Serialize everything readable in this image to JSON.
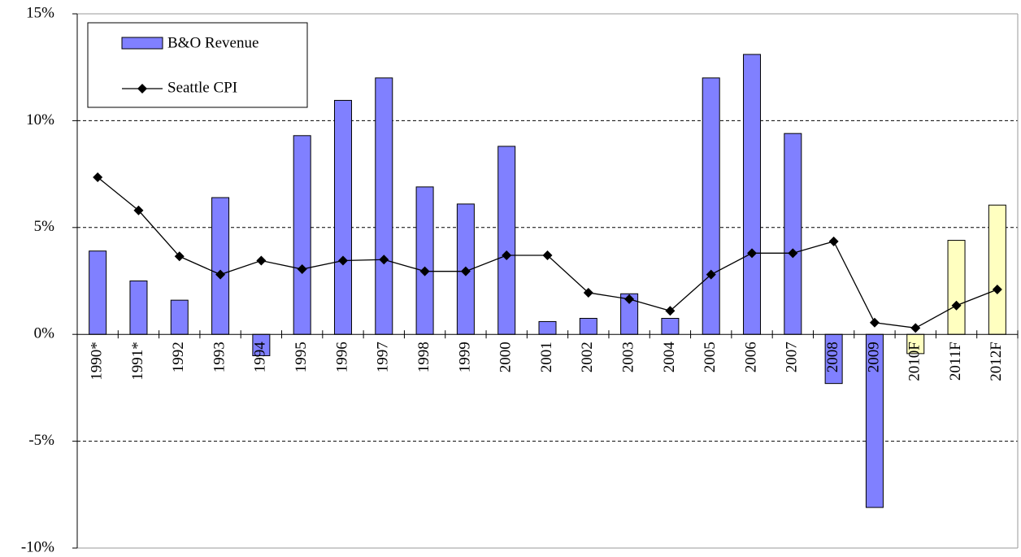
{
  "chart_data": {
    "type": "bar-line",
    "categories": [
      "1990*",
      "1991*",
      "1992",
      "1993",
      "1994",
      "1995",
      "1996",
      "1997",
      "1998",
      "1999",
      "2000",
      "2001",
      "2002",
      "2003",
      "2004",
      "2005",
      "2006",
      "2007",
      "2008",
      "2009",
      "2010F",
      "2011F",
      "2012F"
    ],
    "series": [
      {
        "name": "B&O Revenue",
        "type": "bar",
        "color": "#8080ff",
        "colors": [
          "#8080ff",
          "#8080ff",
          "#8080ff",
          "#8080ff",
          "#8080ff",
          "#8080ff",
          "#8080ff",
          "#8080ff",
          "#8080ff",
          "#8080ff",
          "#8080ff",
          "#8080ff",
          "#8080ff",
          "#8080ff",
          "#8080ff",
          "#8080ff",
          "#8080ff",
          "#8080ff",
          "#8080ff",
          "#8080ff",
          "#ffffc0",
          "#ffffc0",
          "#ffffc0"
        ],
        "values": [
          3.9,
          2.5,
          1.6,
          6.4,
          -1.0,
          9.3,
          10.95,
          12.0,
          6.9,
          6.1,
          8.8,
          0.6,
          0.75,
          1.9,
          0.75,
          12.0,
          13.1,
          9.4,
          -2.3,
          -8.1,
          -0.9,
          4.4,
          6.05
        ]
      },
      {
        "name": "Seattle CPI",
        "type": "line",
        "color": "#000000",
        "values": [
          7.35,
          5.8,
          3.65,
          2.8,
          3.45,
          3.05,
          3.45,
          3.5,
          2.95,
          2.95,
          3.7,
          3.7,
          1.95,
          1.65,
          1.1,
          2.8,
          3.8,
          3.8,
          4.35,
          0.55,
          0.3,
          1.35,
          2.1
        ]
      }
    ],
    "ylim": [
      -10,
      15
    ],
    "yticks": [
      {
        "value": -10,
        "label": "-10%"
      },
      {
        "value": -5,
        "label": "-5%"
      },
      {
        "value": 0,
        "label": "0%"
      },
      {
        "value": 5,
        "label": "5%"
      },
      {
        "value": 10,
        "label": "10%"
      },
      {
        "value": 15,
        "label": "15%"
      }
    ],
    "grid": true,
    "legend": "upper left"
  }
}
